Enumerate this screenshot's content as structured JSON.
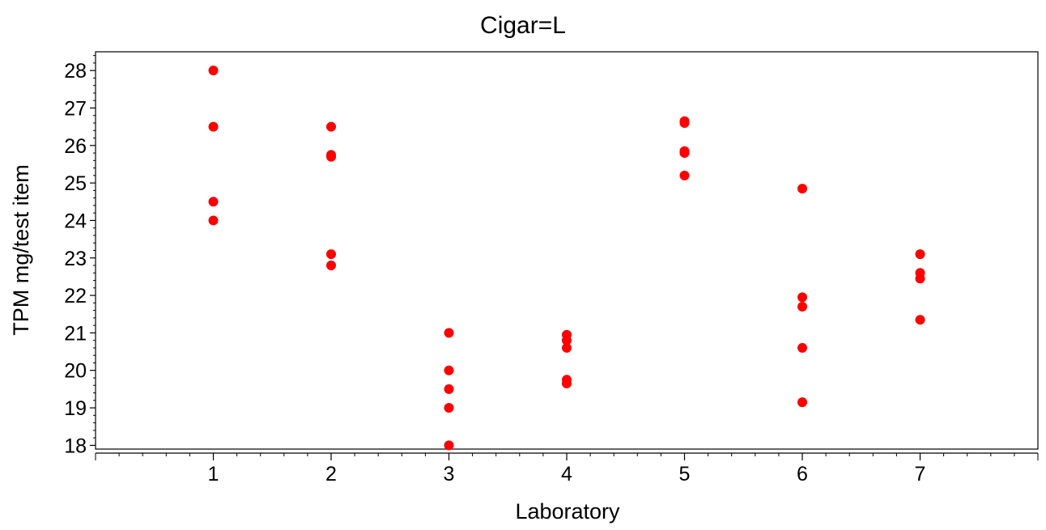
{
  "chart_data": {
    "type": "scatter",
    "title": "Cigar=L",
    "xlabel": "Laboratory",
    "ylabel": "TPM mg/test item",
    "xlim": [
      0,
      8
    ],
    "ylim": [
      17.9,
      28.5
    ],
    "x_ticks": [
      1,
      2,
      3,
      4,
      5,
      6,
      7
    ],
    "y_ticks": [
      18,
      19,
      20,
      21,
      22,
      23,
      24,
      25,
      26,
      27,
      28
    ],
    "grid": false,
    "legend": "none",
    "marker_color": "#ff0000",
    "series": [
      {
        "points": [
          {
            "x": 1,
            "y": 28.0
          },
          {
            "x": 1,
            "y": 26.5
          },
          {
            "x": 1,
            "y": 24.5
          },
          {
            "x": 1,
            "y": 24.0
          },
          {
            "x": 2,
            "y": 26.5
          },
          {
            "x": 2,
            "y": 25.75
          },
          {
            "x": 2,
            "y": 25.7
          },
          {
            "x": 2,
            "y": 23.1
          },
          {
            "x": 2,
            "y": 22.8
          },
          {
            "x": 3,
            "y": 21.0
          },
          {
            "x": 3,
            "y": 20.0
          },
          {
            "x": 3,
            "y": 19.5
          },
          {
            "x": 3,
            "y": 19.0
          },
          {
            "x": 3,
            "y": 18.0
          },
          {
            "x": 4,
            "y": 20.95
          },
          {
            "x": 4,
            "y": 20.8
          },
          {
            "x": 4,
            "y": 20.6
          },
          {
            "x": 4,
            "y": 19.75
          },
          {
            "x": 4,
            "y": 19.65
          },
          {
            "x": 5,
            "y": 26.65
          },
          {
            "x": 5,
            "y": 26.6
          },
          {
            "x": 5,
            "y": 25.85
          },
          {
            "x": 5,
            "y": 25.8
          },
          {
            "x": 5,
            "y": 25.2
          },
          {
            "x": 6,
            "y": 24.85
          },
          {
            "x": 6,
            "y": 21.95
          },
          {
            "x": 6,
            "y": 21.7
          },
          {
            "x": 6,
            "y": 20.6
          },
          {
            "x": 6,
            "y": 19.15
          },
          {
            "x": 7,
            "y": 23.1
          },
          {
            "x": 7,
            "y": 22.6
          },
          {
            "x": 7,
            "y": 22.45
          },
          {
            "x": 7,
            "y": 21.35
          }
        ]
      }
    ]
  }
}
